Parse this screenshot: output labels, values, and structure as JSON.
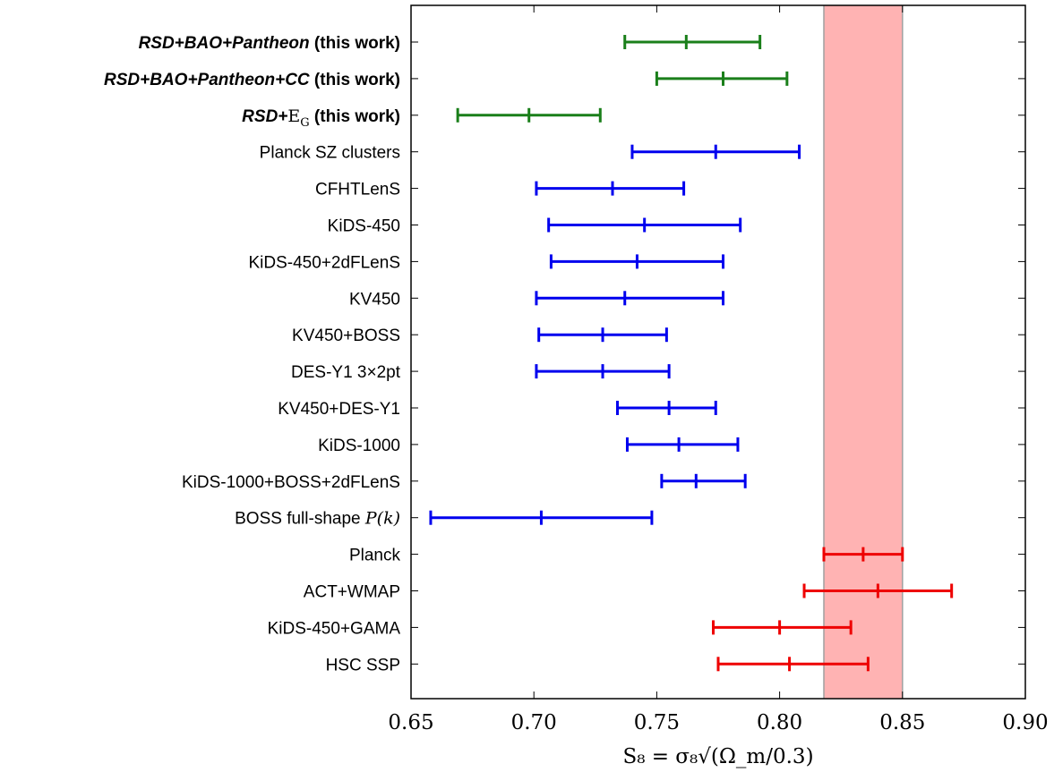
{
  "chart_data": {
    "type": "errorbar",
    "xlabel": "S₈ = σ₈√(Ω_m/0.3)",
    "xlim": [
      0.65,
      0.9
    ],
    "xticks": [
      "0.65",
      "0.70",
      "0.75",
      "0.80",
      "0.85",
      "0.90"
    ],
    "band": {
      "from": 0.818,
      "to": 0.85,
      "color": "#ffb3b3",
      "edge_color": "#a0a0a0"
    },
    "colors": {
      "this_work": "#1a7f1a",
      "lss": "#0000ee",
      "cmb": "#ee0000"
    },
    "rows": [
      {
        "label": "RSD+BAO+Pantheon",
        "suffix": " (this work)",
        "style": "this-work",
        "center": 0.762,
        "low": 0.737,
        "high": 0.792,
        "group": "this_work"
      },
      {
        "label": "RSD+BAO+Pantheon+CC",
        "suffix": " (this work)",
        "style": "this-work",
        "center": 0.777,
        "low": 0.75,
        "high": 0.803,
        "group": "this_work"
      },
      {
        "label": "RSD+",
        "suffix": " (this work)",
        "style": "this-work-eg",
        "eg_main": "E",
        "eg_sub": "G",
        "center": 0.698,
        "low": 0.669,
        "high": 0.727,
        "group": "this_work"
      },
      {
        "label": "Planck SZ clusters",
        "center": 0.774,
        "low": 0.74,
        "high": 0.808,
        "group": "lss"
      },
      {
        "label": "CFHTLenS",
        "center": 0.732,
        "low": 0.701,
        "high": 0.761,
        "group": "lss"
      },
      {
        "label": "KiDS-450",
        "center": 0.745,
        "low": 0.706,
        "high": 0.784,
        "group": "lss"
      },
      {
        "label": "KiDS-450+2dFLenS",
        "center": 0.742,
        "low": 0.707,
        "high": 0.777,
        "group": "lss"
      },
      {
        "label": "KV450",
        "center": 0.737,
        "low": 0.701,
        "high": 0.777,
        "group": "lss"
      },
      {
        "label": "KV450+BOSS",
        "center": 0.728,
        "low": 0.702,
        "high": 0.754,
        "group": "lss"
      },
      {
        "label": "DES-Y1 3×2pt",
        "center": 0.728,
        "low": 0.701,
        "high": 0.755,
        "group": "lss"
      },
      {
        "label": "KV450+DES-Y1",
        "center": 0.755,
        "low": 0.734,
        "high": 0.774,
        "group": "lss"
      },
      {
        "label": "KiDS-1000",
        "center": 0.759,
        "low": 0.738,
        "high": 0.783,
        "group": "lss"
      },
      {
        "label": "KiDS-1000+BOSS+2dFLenS",
        "center": 0.766,
        "low": 0.752,
        "high": 0.786,
        "group": "lss"
      },
      {
        "label": "BOSS full-shape ",
        "italic_suffix": "P(k)",
        "center": 0.703,
        "low": 0.658,
        "high": 0.748,
        "group": "lss"
      },
      {
        "label": "Planck",
        "center": 0.834,
        "low": 0.818,
        "high": 0.85,
        "group": "cmb"
      },
      {
        "label": "ACT+WMAP",
        "center": 0.84,
        "low": 0.81,
        "high": 0.87,
        "group": "cmb"
      },
      {
        "label": "KiDS-450+GAMA",
        "center": 0.8,
        "low": 0.773,
        "high": 0.829,
        "group": "cmb"
      },
      {
        "label": "HSC SSP",
        "center": 0.804,
        "low": 0.775,
        "high": 0.836,
        "group": "cmb"
      }
    ]
  }
}
